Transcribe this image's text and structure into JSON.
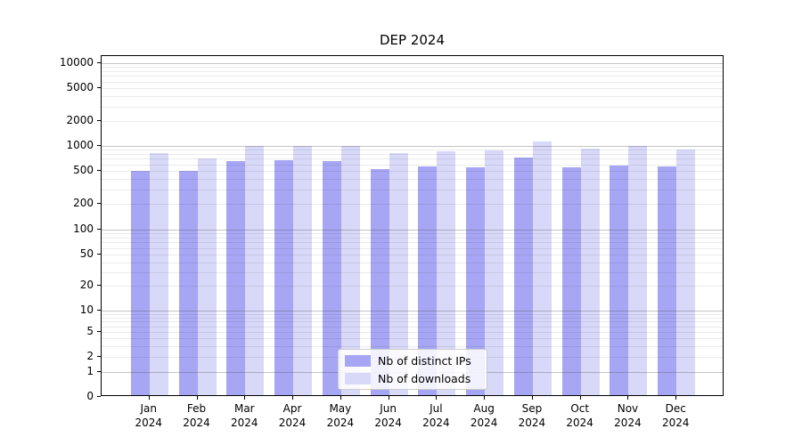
{
  "title": "DEP 2024",
  "chart_data": {
    "type": "bar",
    "title": "DEP 2024",
    "categories": [
      "Jan\n2024",
      "Feb\n2024",
      "Mar\n2024",
      "Apr\n2024",
      "May\n2024",
      "Jun\n2024",
      "Jul\n2024",
      "Aug\n2024",
      "Sep\n2024",
      "Oct\n2024",
      "Nov\n2024",
      "Dec\n2024"
    ],
    "series": [
      {
        "name": "Nb of distinct IPs",
        "color": "#a6a6f4",
        "values": [
          475,
          475,
          620,
          640,
          620,
          495,
          545,
          525,
          690,
          525,
          555,
          535
        ]
      },
      {
        "name": "Nb of downloads",
        "color": "#d8d8f8",
        "values": [
          790,
          680,
          950,
          950,
          960,
          775,
          820,
          845,
          1080,
          890,
          960,
          855
        ]
      }
    ],
    "xlabel": "",
    "ylabel": "",
    "yscale": "symlog",
    "yticks": [
      0,
      1,
      2,
      5,
      10,
      20,
      50,
      100,
      200,
      500,
      1000,
      2000,
      5000,
      10000
    ],
    "ylim": [
      0,
      12000
    ],
    "grid": "horizontal, minor and major",
    "legend_position": "lower center inside plot"
  }
}
